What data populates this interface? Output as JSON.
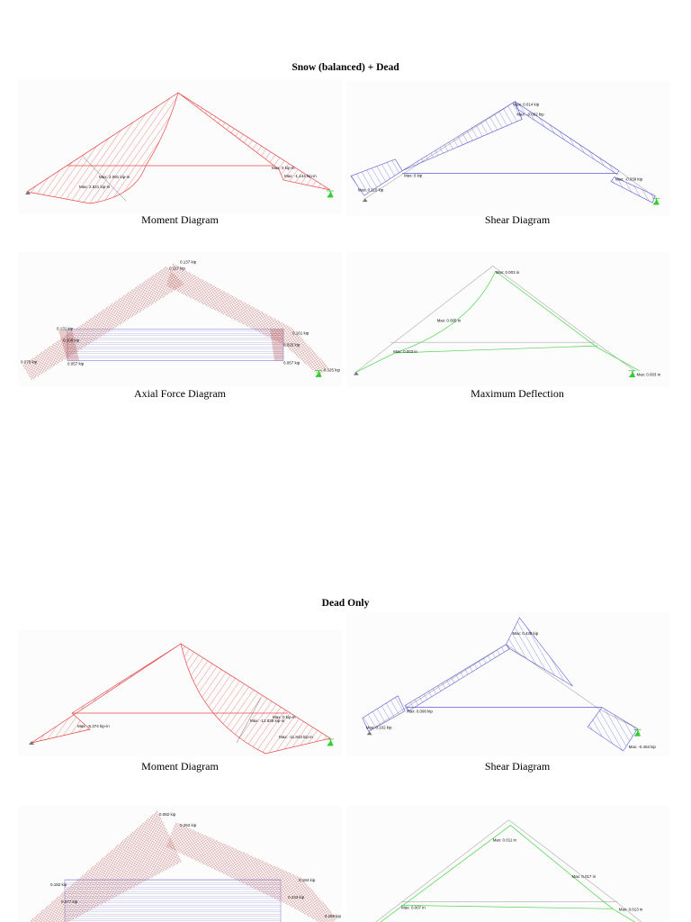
{
  "sections": [
    {
      "title": "Snow (balanced) + Dead",
      "moment": {
        "caption": "Moment Diagram",
        "labels": [
          "Max: 2.091 kip-in",
          "Max: 2.621 kip-in",
          "Max: 0 kip-in",
          "Max: -1.144 kip-in"
        ]
      },
      "shear": {
        "caption": "Shear Diagram",
        "labels": [
          "Max: 0.014 kip",
          "Max: -0.092 kip",
          "Max: 0 kip",
          "Max: 0.110 kip",
          "Max: -0.039 kip"
        ]
      },
      "axial": {
        "caption": "Axial Force Diagram",
        "labels": [
          "0.137 kip",
          "0.117 kip",
          "0.131 kip",
          "0.108 kip",
          "0.075 kip",
          "0.057 kip",
          "0.161 kip",
          "0.025 kip",
          "0.057 kip",
          "0.025 kip"
        ]
      },
      "deflection": {
        "caption": "Maximum Deflection",
        "labels": [
          "Max: 0.003 in",
          "Max: 0.005 in",
          "Max: 0.003 in",
          "Max: 0.003 in"
        ]
      }
    },
    {
      "title": "Dead Only",
      "moment": {
        "caption": "Moment Diagram",
        "labels": [
          "Max: -5.374 kip-in",
          "Max: 0 kip-in",
          "Max: -12.838 kip-in",
          "Max: -11.843 kip-in"
        ]
      },
      "shear": {
        "caption": "Shear Diagram",
        "labels": [
          "Max: 0.438 kip",
          "Max: 0.096 kip",
          "Max: 0.102 kip",
          "Max: -0.463 kip"
        ]
      },
      "axial": {
        "labels": [
          "0.082 kip",
          "0.262 kip",
          "0.182 kip",
          "0.077 kip",
          "0.184 kip",
          "0.233 kip",
          "0.259 kip"
        ]
      },
      "deflection": {
        "labels": [
          "Max: 0.011 in",
          "Max: 0.017 in",
          "Max: 0.007 in",
          "Max: 0.013 in"
        ]
      }
    }
  ],
  "colors": {
    "moment": "#e84a4a",
    "shear": "#5a5ad8",
    "axial": "#a83232",
    "deflection": "#44d444",
    "member": "#aaaaaa",
    "support": "#33cc33"
  }
}
